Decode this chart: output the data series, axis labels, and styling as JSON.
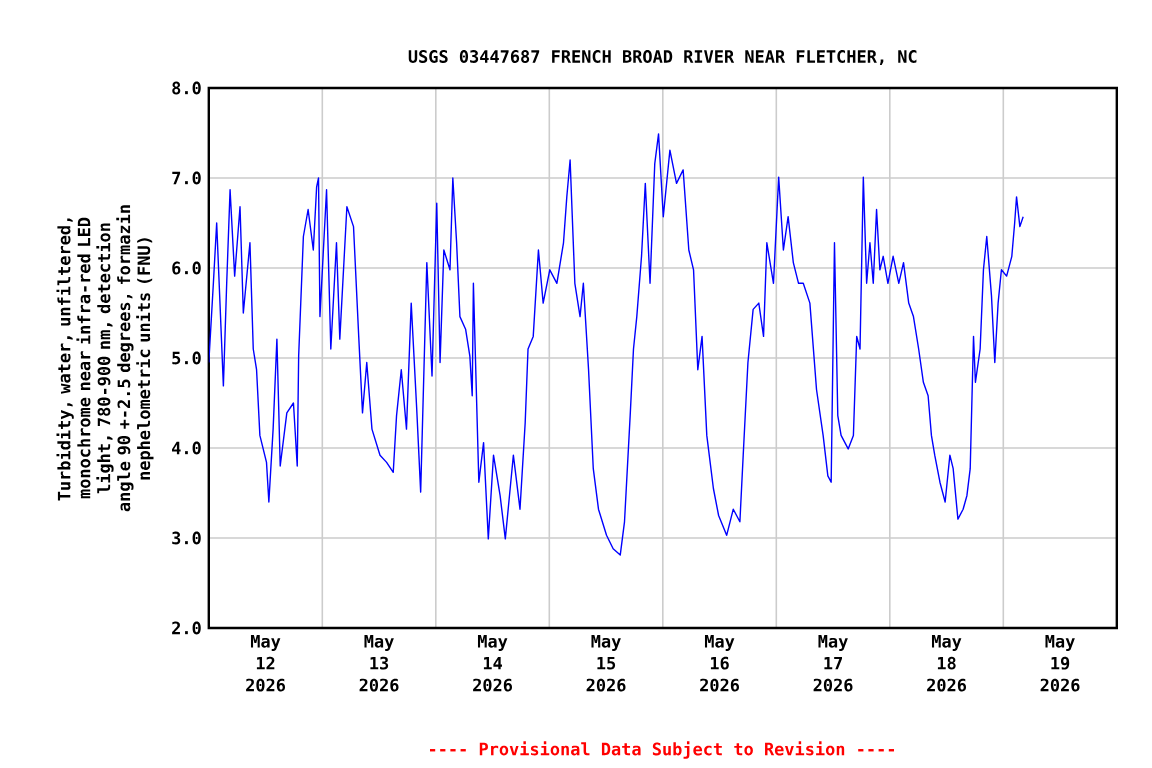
{
  "chart_data": {
    "type": "line",
    "title": "USGS 03447687 FRENCH BROAD RIVER NEAR FLETCHER, NC",
    "ylabel": "Turbidity, water, unfiltered, monochrome near infra-red LED light, 780-900 nm, detection angle 90 +-2.5 degrees, formazin nephelometric units (FNU)",
    "annotations": [
      "---- Provisional Data Subject to Revision ----"
    ],
    "xlim": [
      "2026-05-12T00:00",
      "2026-05-20T00:00"
    ],
    "xticks": [
      {
        "value": "2026-05-13T00:00",
        "label": null
      },
      {
        "value": "2026-05-14T00:00",
        "label": null
      },
      {
        "value": "2026-05-15T00:00",
        "label": null
      },
      {
        "value": "2026-05-16T00:00",
        "label": null
      },
      {
        "value": "2026-05-17T00:00",
        "label": null
      },
      {
        "value": "2026-05-18T00:00",
        "label": null
      },
      {
        "value": "2026-05-19T00:00",
        "label": null
      },
      {
        "value": "2026-05-12T12:00",
        "label": "May 12 2026"
      },
      {
        "value": "2026-05-13T12:00",
        "label": "May 13 2026"
      },
      {
        "value": "2026-05-14T12:00",
        "label": "May 14 2026"
      },
      {
        "value": "2026-05-15T12:00",
        "label": "May 15 2026"
      },
      {
        "value": "2026-05-16T12:00",
        "label": "May 16 2026"
      },
      {
        "value": "2026-05-17T12:00",
        "label": "May 17 2026"
      },
      {
        "value": "2026-05-18T12:00",
        "label": "May 18 2026"
      },
      {
        "value": "2026-05-19T12:00",
        "label": "May 19 2026"
      }
    ],
    "ylim": [
      2,
      8
    ],
    "yticks": [
      {
        "value": 2,
        "label": "2.0"
      },
      {
        "value": 3,
        "label": "3.0"
      },
      {
        "value": 4,
        "label": "4.0"
      },
      {
        "value": 5,
        "label": "5.0"
      },
      {
        "value": 6,
        "label": "6.0"
      },
      {
        "value": 7,
        "label": "7.0"
      },
      {
        "value": 8,
        "label": "8.0"
      }
    ],
    "grid": true,
    "marker": "none",
    "line_style": "solid",
    "series": [
      {
        "color": "#0000ff",
        "x": [
          "2026-05-12T00:00",
          "2026-05-12T00:58",
          "2026-05-12T01:40",
          "2026-05-12T03:05",
          "2026-05-12T03:47",
          "2026-05-12T04:30",
          "2026-05-12T05:28",
          "2026-05-12T06:36",
          "2026-05-12T07:18",
          "2026-05-12T08:42",
          "2026-05-12T09:24",
          "2026-05-12T10:06",
          "2026-05-12T10:48",
          "2026-05-12T12:12",
          "2026-05-12T12:42",
          "2026-05-12T13:36",
          "2026-05-12T14:24",
          "2026-05-12T15:06",
          "2026-05-12T16:30",
          "2026-05-12T17:54",
          "2026-05-12T18:42",
          "2026-05-12T19:00",
          "2026-05-12T20:00",
          "2026-05-12T21:00",
          "2026-05-12T22:06",
          "2026-05-12T22:48",
          "2026-05-12T23:12",
          "2026-05-12T23:30",
          "2026-05-13T00:54",
          "2026-05-13T01:48",
          "2026-05-13T03:00",
          "2026-05-13T03:42",
          "2026-05-13T05:12",
          "2026-05-13T06:36",
          "2026-05-13T07:42",
          "2026-05-13T08:30",
          "2026-05-13T09:24",
          "2026-05-13T10:30",
          "2026-05-13T12:12",
          "2026-05-13T13:36",
          "2026-05-13T15:00",
          "2026-05-13T15:42",
          "2026-05-13T16:42",
          "2026-05-13T17:48",
          "2026-05-13T18:48",
          "2026-05-13T19:58",
          "2026-05-13T20:48",
          "2026-05-13T22:06",
          "2026-05-13T23:12",
          "2026-05-14T00:12",
          "2026-05-14T00:54",
          "2026-05-14T01:42",
          "2026-05-14T03:00",
          "2026-05-14T03:36",
          "2026-05-14T04:24",
          "2026-05-14T05:06",
          "2026-05-14T06:18",
          "2026-05-14T07:12",
          "2026-05-14T07:42",
          "2026-05-14T07:57",
          "2026-05-14T09:06",
          "2026-05-14T10:06",
          "2026-05-14T11:06",
          "2026-05-14T12:12",
          "2026-05-14T13:36",
          "2026-05-14T14:42",
          "2026-05-14T16:24",
          "2026-05-14T17:48",
          "2026-05-14T18:54",
          "2026-05-14T19:30",
          "2026-05-14T20:36",
          "2026-05-14T21:42",
          "2026-05-14T22:42",
          "2026-05-15T00:06",
          "2026-05-15T01:36",
          "2026-05-15T03:00",
          "2026-05-15T03:42",
          "2026-05-15T04:24",
          "2026-05-15T05:24",
          "2026-05-15T06:30",
          "2026-05-15T07:12",
          "2026-05-15T08:18",
          "2026-05-15T09:18",
          "2026-05-15T10:24",
          "2026-05-15T12:06",
          "2026-05-15T13:30",
          "2026-05-15T15:00",
          "2026-05-15T15:54",
          "2026-05-15T17:06",
          "2026-05-15T17:48",
          "2026-05-15T18:30",
          "2026-05-15T19:30",
          "2026-05-15T20:18",
          "2026-05-15T21:18",
          "2026-05-15T22:18",
          "2026-05-15T23:06",
          "2026-05-16T00:06",
          "2026-05-16T01:30",
          "2026-05-16T02:54",
          "2026-05-16T04:18",
          "2026-05-16T05:30",
          "2026-05-16T06:30",
          "2026-05-16T07:24",
          "2026-05-16T08:18",
          "2026-05-16T09:18",
          "2026-05-16T10:42",
          "2026-05-16T11:48",
          "2026-05-16T13:30",
          "2026-05-16T14:54",
          "2026-05-16T16:18",
          "2026-05-16T17:00",
          "2026-05-16T18:00",
          "2026-05-16T19:06",
          "2026-05-16T20:18",
          "2026-05-16T21:18",
          "2026-05-16T22:00",
          "2026-05-16T23:24",
          "2026-05-17T00:30",
          "2026-05-17T01:30",
          "2026-05-17T02:30",
          "2026-05-17T03:36",
          "2026-05-17T04:42",
          "2026-05-17T05:42",
          "2026-05-17T07:06",
          "2026-05-17T08:30",
          "2026-05-17T09:54",
          "2026-05-17T10:54",
          "2026-05-17T11:36",
          "2026-05-17T12:18",
          "2026-05-17T13:00",
          "2026-05-17T13:42",
          "2026-05-17T15:12",
          "2026-05-17T16:18",
          "2026-05-17T17:00",
          "2026-05-17T17:42",
          "2026-05-17T18:24",
          "2026-05-17T19:06",
          "2026-05-17T19:48",
          "2026-05-17T20:30",
          "2026-05-17T21:12",
          "2026-05-17T21:54",
          "2026-05-17T22:36",
          "2026-05-17T23:36",
          "2026-05-18T00:42",
          "2026-05-18T01:54",
          "2026-05-18T02:54",
          "2026-05-18T04:00",
          "2026-05-18T05:00",
          "2026-05-18T06:06",
          "2026-05-18T07:06",
          "2026-05-18T08:06",
          "2026-05-18T08:48",
          "2026-05-18T09:30",
          "2026-05-18T10:36",
          "2026-05-18T11:42",
          "2026-05-18T12:42",
          "2026-05-18T13:24",
          "2026-05-18T14:24",
          "2026-05-18T15:30",
          "2026-05-18T16:18",
          "2026-05-18T17:00",
          "2026-05-18T17:42",
          "2026-05-18T18:06",
          "2026-05-18T19:06",
          "2026-05-18T19:48",
          "2026-05-18T20:30",
          "2026-05-18T21:30",
          "2026-05-18T22:12",
          "2026-05-18T22:54",
          "2026-05-18T23:36",
          "2026-05-19T00:42",
          "2026-05-19T01:48",
          "2026-05-19T02:24",
          "2026-05-19T02:48",
          "2026-05-19T03:30",
          "2026-05-19T04:12"
        ],
        "values": [
          4.95,
          5.83,
          6.5,
          4.69,
          5.83,
          6.87,
          5.91,
          6.68,
          5.5,
          6.28,
          5.1,
          4.87,
          4.14,
          3.84,
          3.4,
          4.21,
          5.21,
          3.8,
          4.39,
          4.5,
          3.8,
          5.02,
          6.35,
          6.65,
          6.2,
          6.9,
          7.0,
          5.46,
          6.87,
          5.1,
          6.28,
          5.21,
          6.68,
          6.46,
          5.24,
          4.39,
          4.95,
          4.21,
          3.92,
          3.84,
          3.73,
          4.36,
          4.87,
          4.21,
          5.61,
          4.43,
          3.51,
          6.06,
          4.8,
          6.72,
          4.95,
          6.2,
          5.98,
          7.0,
          6.28,
          5.46,
          5.32,
          5.02,
          4.58,
          5.83,
          3.62,
          4.06,
          2.99,
          3.92,
          3.47,
          2.99,
          3.92,
          3.32,
          4.28,
          5.1,
          5.24,
          6.2,
          5.61,
          5.98,
          5.83,
          6.28,
          6.79,
          7.2,
          5.83,
          5.46,
          5.83,
          4.87,
          3.77,
          3.32,
          3.03,
          2.88,
          2.81,
          3.18,
          4.36,
          5.1,
          5.46,
          6.13,
          6.94,
          5.83,
          7.16,
          7.49,
          6.57,
          7.31,
          6.94,
          7.09,
          6.2,
          5.98,
          4.87,
          5.24,
          4.14,
          3.55,
          3.25,
          3.03,
          3.32,
          3.18,
          3.92,
          4.95,
          5.54,
          5.61,
          5.24,
          6.28,
          5.83,
          7.01,
          6.2,
          6.57,
          6.06,
          5.83,
          5.83,
          5.61,
          4.65,
          4.14,
          3.69,
          3.62,
          6.28,
          4.36,
          4.14,
          3.99,
          4.14,
          5.24,
          5.1,
          7.01,
          5.83,
          6.28,
          5.83,
          6.65,
          5.98,
          6.13,
          5.83,
          6.13,
          5.83,
          6.06,
          5.61,
          5.46,
          5.1,
          4.73,
          4.58,
          4.14,
          3.92,
          3.62,
          3.4,
          3.92,
          3.77,
          3.21,
          3.32,
          3.47,
          3.77,
          5.24,
          4.73,
          5.1,
          5.98,
          6.35,
          5.69,
          4.95,
          5.61,
          5.98,
          5.91,
          6.13,
          6.5,
          6.79,
          6.46,
          6.57
        ]
      }
    ]
  }
}
